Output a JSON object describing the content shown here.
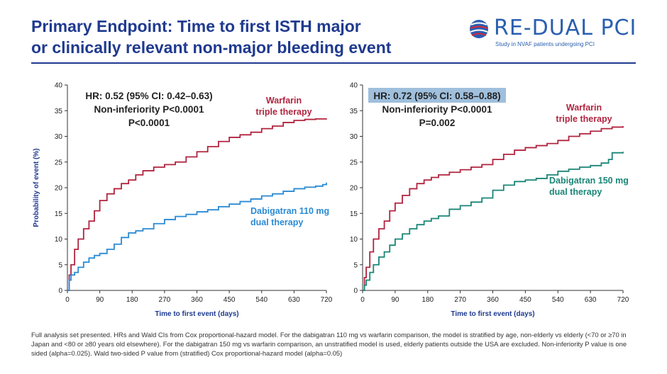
{
  "header": {
    "title_line1": "Primary Endpoint: Time to first ISTH major",
    "title_line2": "or clinically relevant non-major bleeding event",
    "logo_re": "RE-",
    "logo_rest": "DUAL PCI",
    "logo_subtitle": "Study in NVAF patients undergoing PCI"
  },
  "colors": {
    "title": "#1f3a8f",
    "warfarin": "#b0243f",
    "dabigatran_110": "#2a8ad4",
    "dabigatran_150": "#1a8577",
    "highlight": "#9fbfdc"
  },
  "chart_data": [
    {
      "type": "line",
      "xlabel": "Time to first event (days)",
      "ylabel": "Probability of event (%)",
      "xlim": [
        0,
        720
      ],
      "ylim": [
        0,
        40
      ],
      "xticks": [
        0,
        90,
        180,
        270,
        360,
        450,
        540,
        630,
        720
      ],
      "yticks": [
        0,
        5,
        10,
        15,
        20,
        25,
        30,
        35,
        40
      ],
      "annotations": [
        "HR: 0.52 (95% CI: 0.42–0.63)",
        "Non-inferiority P<0.0001",
        "P<0.0001"
      ],
      "series": [
        {
          "name": "Warfarin triple therapy",
          "label_lines": [
            "Warfarin",
            "triple therapy"
          ],
          "x": [
            0,
            5,
            10,
            20,
            30,
            45,
            60,
            75,
            90,
            110,
            130,
            150,
            170,
            190,
            210,
            240,
            270,
            300,
            330,
            360,
            390,
            420,
            450,
            480,
            510,
            540,
            570,
            600,
            630,
            660,
            690,
            720
          ],
          "y": [
            0,
            3,
            5,
            8,
            10,
            12,
            13.5,
            15.5,
            17.5,
            18.8,
            19.8,
            20.8,
            21.5,
            22.5,
            23.3,
            24,
            24.5,
            25,
            26,
            27,
            28,
            29,
            29.8,
            30.3,
            30.8,
            31.5,
            32,
            32.7,
            33.1,
            33.3,
            33.4,
            33.5
          ]
        },
        {
          "name": "Dabigatran 110 mg dual therapy",
          "label_lines": [
            "Dabigatran 110 mg",
            "dual therapy"
          ],
          "x": [
            0,
            5,
            10,
            20,
            30,
            45,
            60,
            75,
            90,
            110,
            130,
            150,
            170,
            190,
            210,
            240,
            270,
            300,
            330,
            360,
            390,
            420,
            450,
            480,
            510,
            540,
            570,
            600,
            630,
            660,
            690,
            710,
            720
          ],
          "y": [
            0,
            2,
            3,
            3.5,
            4.5,
            5.5,
            6.3,
            6.8,
            7.2,
            8,
            9,
            10.3,
            11.2,
            11.6,
            12,
            13,
            13.8,
            14.4,
            14.8,
            15.3,
            15.7,
            16.3,
            16.8,
            17.3,
            17.8,
            18.4,
            18.8,
            19.3,
            19.8,
            20.1,
            20.3,
            20.6,
            21
          ]
        }
      ]
    },
    {
      "type": "line",
      "xlabel": "Time to first event (days)",
      "ylabel": "",
      "xlim": [
        0,
        720
      ],
      "ylim": [
        0,
        40
      ],
      "xticks": [
        0,
        90,
        180,
        270,
        360,
        450,
        540,
        630,
        720
      ],
      "yticks": [
        0,
        5,
        10,
        15,
        20,
        25,
        30,
        35,
        40
      ],
      "annotations": [
        "HR: 0.72 (95% CI: 0.58–0.88)",
        "Non-inferiority P<0.0001",
        "P=0.002"
      ],
      "series": [
        {
          "name": "Warfarin triple therapy",
          "label_lines": [
            "Warfarin",
            "triple therapy"
          ],
          "x": [
            0,
            5,
            10,
            20,
            30,
            45,
            60,
            75,
            90,
            110,
            130,
            150,
            170,
            190,
            210,
            240,
            270,
            300,
            330,
            360,
            390,
            420,
            450,
            480,
            510,
            540,
            570,
            600,
            630,
            660,
            690,
            720
          ],
          "y": [
            0,
            2.5,
            4.5,
            7.5,
            10,
            12,
            13.5,
            15.5,
            17,
            18.5,
            19.8,
            20.8,
            21.5,
            22,
            22.5,
            23,
            23.5,
            24,
            24.5,
            25.5,
            26.5,
            27.3,
            27.8,
            28.2,
            28.6,
            29.2,
            30,
            30.5,
            31,
            31.5,
            31.8,
            32
          ]
        },
        {
          "name": "Dabigatran 150 mg dual therapy",
          "label_lines": [
            "Dabigatran 150 mg",
            "dual therapy"
          ],
          "x": [
            0,
            5,
            10,
            20,
            30,
            45,
            60,
            75,
            90,
            110,
            130,
            150,
            170,
            190,
            210,
            240,
            270,
            300,
            330,
            360,
            390,
            420,
            450,
            480,
            510,
            540,
            570,
            600,
            630,
            660,
            680,
            690,
            720
          ],
          "y": [
            0,
            1,
            2,
            3.5,
            5,
            6.5,
            7.5,
            8.8,
            10,
            11,
            12,
            12.8,
            13.5,
            14,
            14.5,
            15.8,
            16.5,
            17.2,
            18,
            19.5,
            20.5,
            21.2,
            21.5,
            21.8,
            22.5,
            23.2,
            23.6,
            24,
            24.3,
            24.8,
            25.5,
            26.8,
            27
          ]
        }
      ]
    }
  ],
  "footnote": "Full analysis set presented. HRs and Wald CIs from Cox proportional-hazard model. For the dabigatran 110 mg vs warfarin comparison, the model is stratified by age, non-elderly vs elderly (<70 or ≥70 in Japan and <80 or ≥80 years old elsewhere). For the dabigatran 150 mg vs warfarin comparison, an unstratified model is used, elderly patients outside the USA are excluded. Non-inferiority P value is one sided (alpha=0.025). Wald two-sided P value from (stratified) Cox proportional-hazard model (alpha=0.05)"
}
